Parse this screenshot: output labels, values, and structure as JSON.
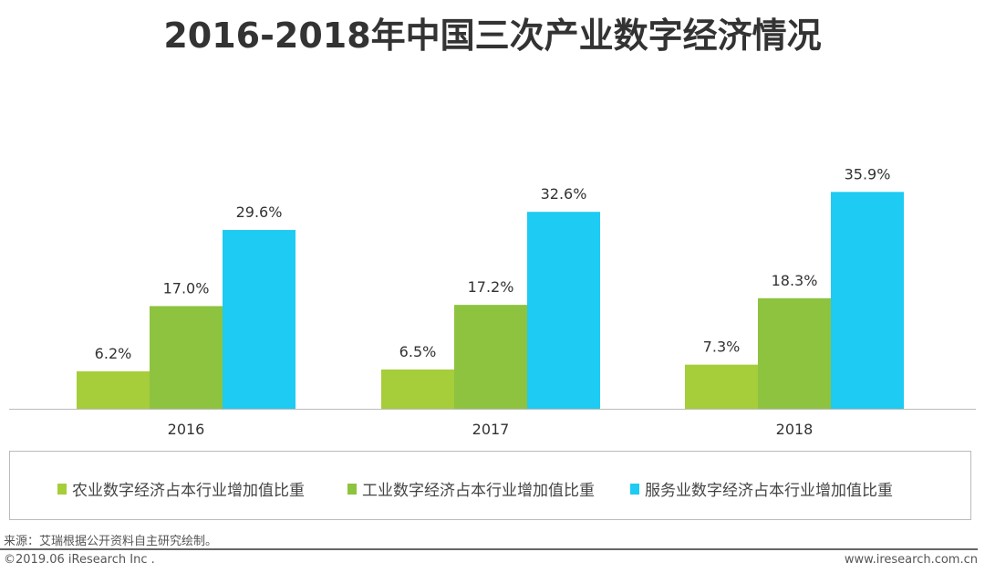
{
  "chart_data": {
    "type": "bar",
    "title": "2016-2018年中国三次产业数字经济情况",
    "categories": [
      "2016",
      "2017",
      "2018"
    ],
    "series": [
      {
        "name": "农业数字经济占本行业增加值比重",
        "values": [
          6.2,
          6.5,
          7.3
        ],
        "color": "#a6cd3a"
      },
      {
        "name": "工业数字经济占本行业增加值比重",
        "values": [
          17.0,
          17.2,
          18.3
        ],
        "color": "#8dc33f"
      },
      {
        "name": "服务业数字经济占本行业增加值比重",
        "values": [
          29.6,
          32.6,
          35.9
        ],
        "color": "#1ecbf2"
      }
    ],
    "value_format": "percent, 1 decimal",
    "ylim": [
      0,
      40
    ],
    "grid": false,
    "legend": "bottom"
  },
  "footer": {
    "source": "来源：艾瑞根据公开资料自主研究绘制。",
    "copyright": "©2019.06 iResearch Inc .",
    "website": "www.iresearch.com.cn"
  }
}
